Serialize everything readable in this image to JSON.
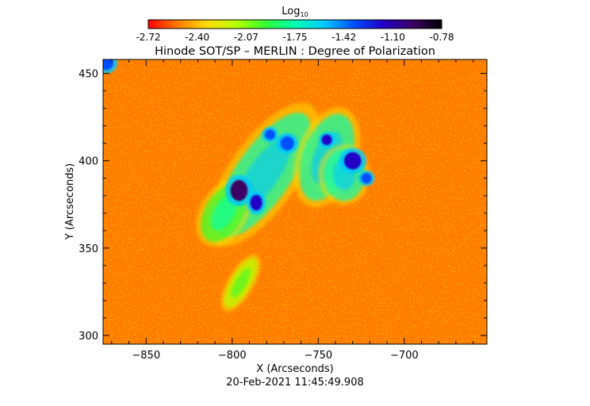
{
  "chart_data": {
    "type": "heatmap",
    "title": "Hinode SOT/SP – MERLIN : Degree of Polarization",
    "colorbar": {
      "label_base": "Log",
      "label_sub": "10",
      "ticks": [
        "-2.72",
        "-2.40",
        "-2.07",
        "-1.75",
        "-1.42",
        "-1.10",
        "-0.78"
      ],
      "range": [
        -2.72,
        -0.78
      ],
      "colormap": [
        "#ff0000",
        "#ff7a00",
        "#ffdc00",
        "#b8ff00",
        "#32ff32",
        "#00ffb4",
        "#00c8ff",
        "#0050ff",
        "#2000c8",
        "#3c0064",
        "#000000"
      ]
    },
    "xlabel": "X (Arcseconds)",
    "ylabel": "Y (Arcseconds)",
    "xlim": [
      -875,
      -652
    ],
    "ylim": [
      295,
      458
    ],
    "xticks": [
      -850,
      -800,
      -750,
      -700
    ],
    "yticks": [
      300,
      350,
      400,
      450
    ],
    "background_level": -2.55,
    "features": [
      {
        "kind": "plage",
        "x": -782,
        "y": 392,
        "rx": 16,
        "ry": 42,
        "angle": 35,
        "level": -1.75
      },
      {
        "kind": "plage",
        "x": -745,
        "y": 402,
        "rx": 14,
        "ry": 26,
        "angle": 20,
        "level": -1.72
      },
      {
        "kind": "plage",
        "x": -735,
        "y": 392,
        "rx": 12,
        "ry": 15,
        "angle": 0,
        "level": -1.68
      },
      {
        "kind": "plage",
        "x": -805,
        "y": 370,
        "rx": 11,
        "ry": 18,
        "angle": 30,
        "level": -1.9
      },
      {
        "kind": "plage",
        "x": -795,
        "y": 330,
        "rx": 6,
        "ry": 16,
        "angle": 30,
        "level": -2.05
      },
      {
        "kind": "pore",
        "x": -796,
        "y": 383,
        "rx": 5,
        "ry": 6,
        "angle": 0,
        "level": -1.05
      },
      {
        "kind": "pore",
        "x": -786,
        "y": 376,
        "rx": 3.5,
        "ry": 4.5,
        "angle": 0,
        "level": -1.1
      },
      {
        "kind": "knot",
        "x": -768,
        "y": 410,
        "rx": 4,
        "ry": 4,
        "angle": 0,
        "level": -1.3
      },
      {
        "kind": "knot",
        "x": -778,
        "y": 415,
        "rx": 3,
        "ry": 3,
        "angle": 0,
        "level": -1.3
      },
      {
        "kind": "knot",
        "x": -730,
        "y": 400,
        "rx": 5,
        "ry": 5,
        "angle": 0,
        "level": -1.25
      },
      {
        "kind": "knot",
        "x": -745,
        "y": 412,
        "rx": 3,
        "ry": 3,
        "angle": 0,
        "level": -1.25
      },
      {
        "kind": "knot",
        "x": -722,
        "y": 390,
        "rx": 3,
        "ry": 3,
        "angle": 0,
        "level": -1.3
      },
      {
        "kind": "knot",
        "x": -873,
        "y": 456,
        "rx": 4,
        "ry": 4,
        "angle": 0,
        "level": -1.3
      }
    ],
    "timestamp": "20-Feb-2021 11:45:49.908"
  }
}
